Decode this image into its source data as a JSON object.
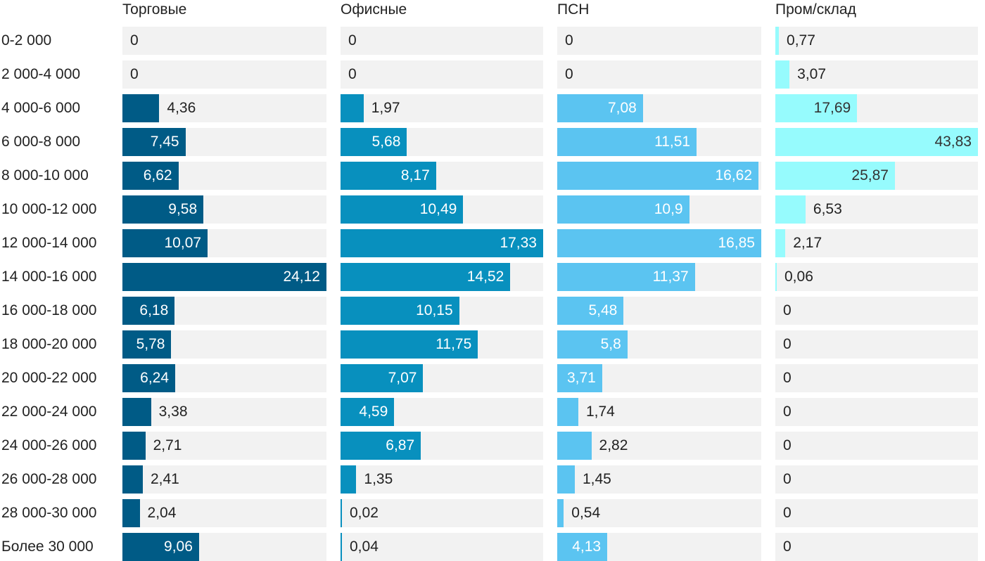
{
  "chart_data": {
    "type": "bar",
    "orientation": "horizontal",
    "layout": "small-multiples",
    "categories": [
      "0-2 000",
      "2 000-4 000",
      "4 000-6 000",
      "6 000-8 000",
      "8 000-10 000",
      "10 000-12 000",
      "12 000-14 000",
      "14 000-16 000",
      "16 000-18 000",
      "18 000-20 000",
      "20 000-22 000",
      "22 000-24 000",
      "24 000-26 000",
      "26 000-28 000",
      "28 000-30 000",
      "Более 30 000"
    ],
    "series": [
      {
        "name": "Торговые",
        "color": "#005b86",
        "max": 24.12,
        "values": [
          0,
          0,
          4.36,
          7.45,
          6.62,
          9.58,
          10.07,
          24.12,
          6.18,
          5.78,
          6.24,
          3.38,
          2.71,
          2.41,
          2.04,
          9.06
        ],
        "labels": [
          "0",
          "0",
          "4,36",
          "7,45",
          "6,62",
          "9,58",
          "10,07",
          "24,12",
          "6,18",
          "5,78",
          "6,24",
          "3,38",
          "2,71",
          "2,41",
          "2,04",
          "9,06"
        ]
      },
      {
        "name": "Офисные",
        "color": "#0890be",
        "max": 17.33,
        "values": [
          0,
          0,
          1.97,
          5.68,
          8.17,
          10.49,
          17.33,
          14.52,
          10.15,
          11.75,
          7.07,
          4.59,
          6.87,
          1.35,
          0.02,
          0.04
        ],
        "labels": [
          "0",
          "0",
          "1,97",
          "5,68",
          "8,17",
          "10,49",
          "17,33",
          "14,52",
          "10,15",
          "11,75",
          "7,07",
          "4,59",
          "6,87",
          "1,35",
          "0,02",
          "0,04"
        ]
      },
      {
        "name": "ПСН",
        "color": "#5bc4f1",
        "max": 16.85,
        "values": [
          0,
          0,
          7.08,
          11.51,
          16.62,
          10.9,
          16.85,
          11.37,
          5.48,
          5.8,
          3.71,
          1.74,
          2.82,
          1.45,
          0.54,
          4.13
        ],
        "labels": [
          "0",
          "0",
          "7,08",
          "11,51",
          "16,62",
          "10,9",
          "16,85",
          "11,37",
          "5,48",
          "5,8",
          "3,71",
          "1,74",
          "2,82",
          "1,45",
          "0,54",
          "4,13"
        ]
      },
      {
        "name": "Пром/склад",
        "color": "#96fbfd",
        "max": 43.83,
        "values": [
          0.77,
          3.07,
          17.69,
          43.83,
          25.87,
          6.53,
          2.17,
          0.06,
          0,
          0,
          0,
          0,
          0,
          0,
          0,
          0
        ],
        "labels": [
          "0,77",
          "3,07",
          "17,69",
          "43,83",
          "25,87",
          "6,53",
          "2,17",
          "0,06",
          "0",
          "0",
          "0",
          "0",
          "0",
          "0",
          "0",
          "0"
        ]
      }
    ],
    "title": "",
    "xlabel": "",
    "ylabel": "",
    "grid": false,
    "legend": "none"
  }
}
